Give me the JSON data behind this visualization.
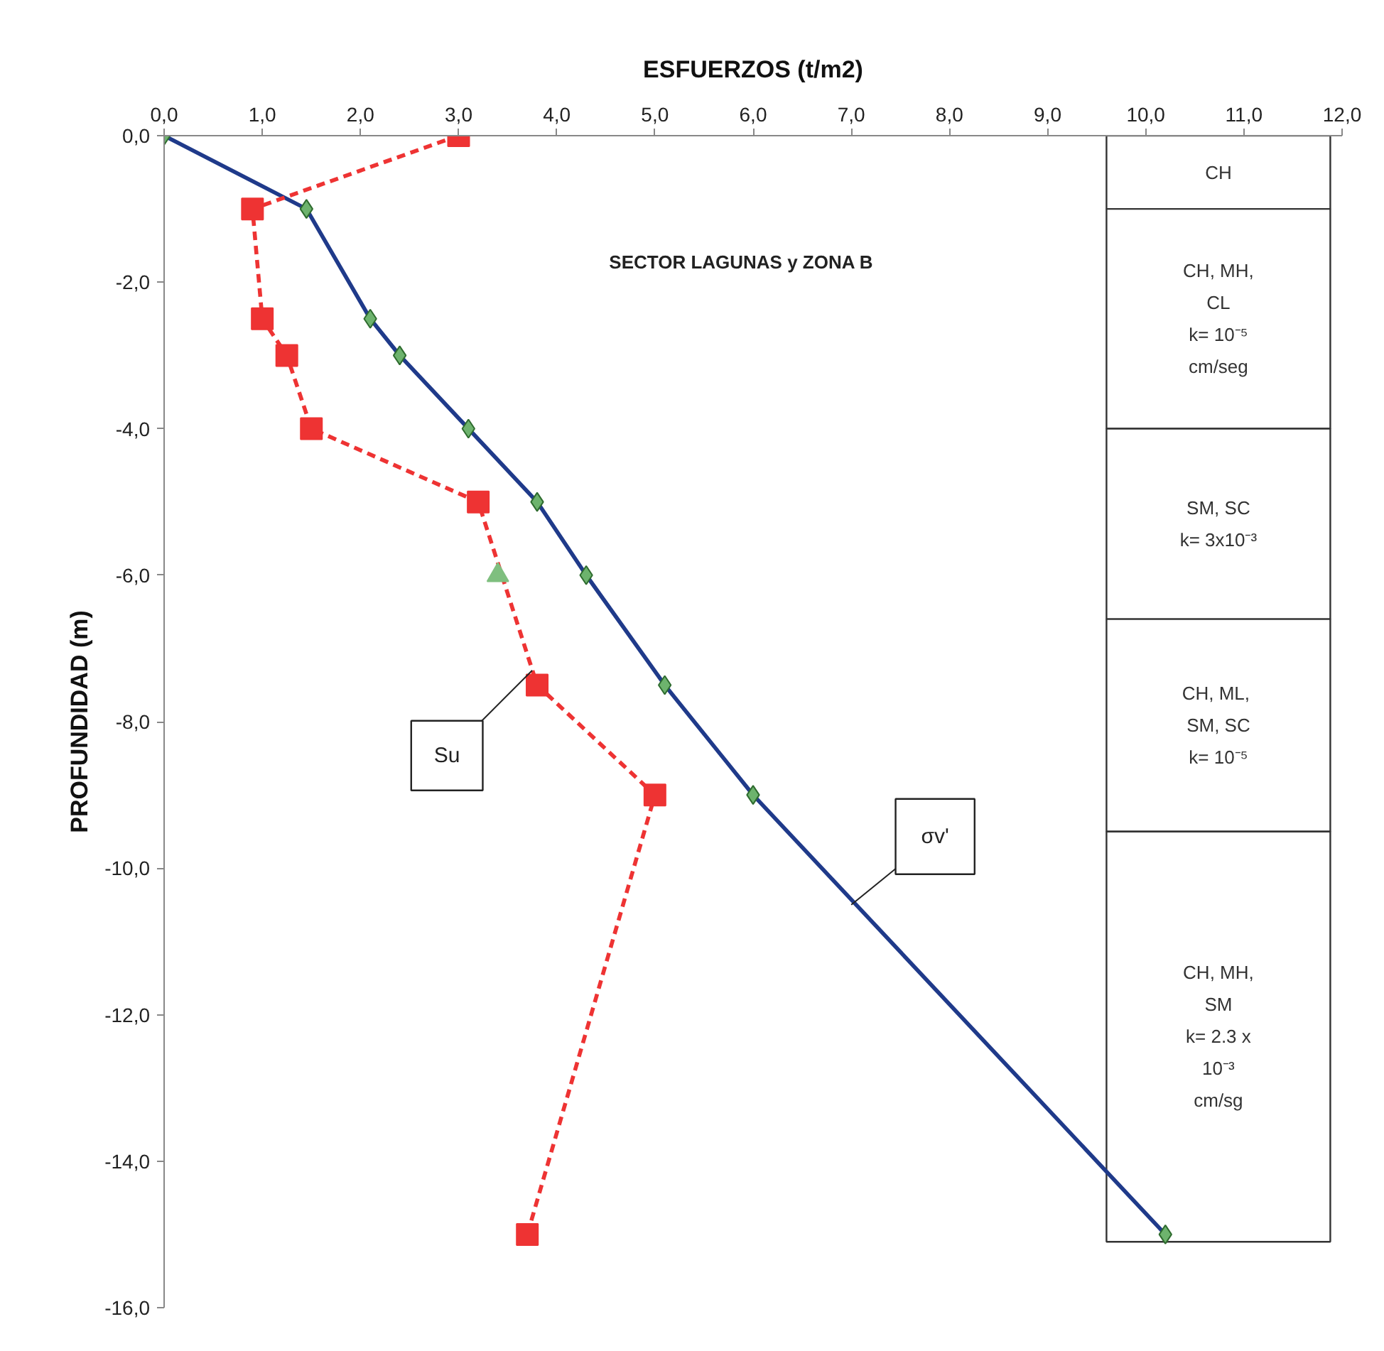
{
  "chart_data": {
    "type": "line",
    "xlabel": "ESFUERZOS (t/m2)",
    "ylabel": "PROFUNDIDAD (m)",
    "xlim": [
      0,
      12
    ],
    "ylim": [
      -16,
      0
    ],
    "xticks": [
      {
        "value": 0,
        "label": "0,0"
      },
      {
        "value": 1,
        "label": "1,0"
      },
      {
        "value": 2,
        "label": "2,0"
      },
      {
        "value": 3,
        "label": "3,0"
      },
      {
        "value": 4,
        "label": "4,0"
      },
      {
        "value": 5,
        "label": "5,0"
      },
      {
        "value": 6,
        "label": "6,0"
      },
      {
        "value": 7,
        "label": "7,0"
      },
      {
        "value": 8,
        "label": "8,0"
      },
      {
        "value": 9,
        "label": "9,0"
      },
      {
        "value": 10,
        "label": "10,0"
      },
      {
        "value": 11,
        "label": "11,0"
      },
      {
        "value": 12,
        "label": "12,0"
      }
    ],
    "yticks": [
      {
        "value": 0,
        "label": "0,0"
      },
      {
        "value": -2,
        "label": "-2,0"
      },
      {
        "value": -4,
        "label": "-4,0"
      },
      {
        "value": -6,
        "label": "-6,0"
      },
      {
        "value": -8,
        "label": "-8,0"
      },
      {
        "value": -10,
        "label": "-10,0"
      },
      {
        "value": -12,
        "label": "-12,0"
      },
      {
        "value": -14,
        "label": "-14,0"
      },
      {
        "value": -16,
        "label": "-16,0"
      }
    ],
    "grid": false,
    "series": [
      {
        "type": "line",
        "color": "#1f3a8a",
        "colors": [
          "#6db36d",
          "#6db36d",
          "#6db36d",
          "#6db36d",
          "#6db36d",
          "#6db36d",
          "#6db36d",
          "#6db36d",
          "#6db36d",
          "#6db36d"
        ],
        "marker": "diamond",
        "line_style": "solid",
        "x": [
          0,
          1.45,
          2.1,
          2.4,
          3.1,
          3.8,
          4.3,
          5.1,
          6.0,
          10.2
        ],
        "values": [
          0,
          -1,
          -2.5,
          -3,
          -4,
          -5,
          -6,
          -7.5,
          -9,
          -15
        ]
      },
      {
        "type": "line",
        "color": "#ee3333",
        "marker": "square",
        "line_style": "dashed",
        "x": [
          3.0,
          0.9,
          1.0,
          1.25,
          1.5,
          3.2,
          3.8,
          5.0,
          3.7
        ],
        "values": [
          0,
          -1,
          -2.5,
          -3,
          -4,
          -5,
          -7.5,
          -9,
          -15
        ]
      },
      {
        "type": "scatter",
        "color": "#7fbf7f",
        "marker": "triangle",
        "x": [
          3.4
        ],
        "values": [
          -6
        ]
      }
    ],
    "bands": [
      {
        "axis": "y",
        "from": 0,
        "to": -1,
        "label": "CH",
        "color": "#ffffff"
      },
      {
        "axis": "y",
        "from": -1,
        "to": -4,
        "label": "CH, MH,\nCL\nk= 10⁻⁵\ncm/seg",
        "color": "#ffffff"
      },
      {
        "axis": "y",
        "from": -4,
        "to": -6.6,
        "label": "SM, SC\nk= 3x10⁻³",
        "color": "#ffffff"
      },
      {
        "axis": "y",
        "from": -6.6,
        "to": -9.5,
        "label": "CH,  ML,\nSM, SC\nk= 10⁻⁵",
        "color": "#ffffff"
      },
      {
        "axis": "y",
        "from": -9.5,
        "to": -15.1,
        "label": "CH, MH,\nSM\nk= 2.3 x\n10⁻³\ncm/sg",
        "color": "#ffffff"
      }
    ],
    "annotations": [
      "SECTOR LAGUNAS y ZONA B",
      {
        "text": "Su",
        "x": 3.75,
        "y": -7.3
      },
      {
        "text": "σv'",
        "x": 7.0,
        "y": -10.5
      }
    ]
  }
}
